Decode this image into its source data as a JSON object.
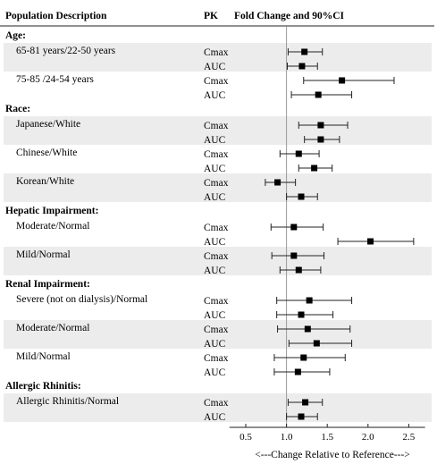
{
  "colors": {
    "band": "#ececec",
    "marker": "#000000",
    "refline": "#9a9a9a",
    "errorbar": "#222222"
  },
  "headers": {
    "population": "Population Description",
    "pk": "PK",
    "fold": "Fold Change and 90%CI"
  },
  "chart_data": {
    "type": "forest",
    "title": "",
    "xlabel": "<---Change Relative to Reference--->",
    "xlim": [
      0.3,
      2.7
    ],
    "xticks": [
      "0.5",
      "1.0",
      "1.5",
      "2.0",
      "2.5"
    ],
    "reference_line": 1.0,
    "groups": [
      {
        "title": "Age:",
        "subgroups": [
          {
            "label": "65-81 years/22-50  years",
            "rows": [
              {
                "pk": "Cmax",
                "est": 1.22,
                "lo": 1.02,
                "hi": 1.44
              },
              {
                "pk": "AUC",
                "est": 1.19,
                "lo": 1.01,
                "hi": 1.38
              }
            ]
          },
          {
            "label": "75-85 /24-54 years",
            "rows": [
              {
                "pk": "Cmax",
                "est": 1.68,
                "lo": 1.21,
                "hi": 2.32
              },
              {
                "pk": "AUC",
                "est": 1.39,
                "lo": 1.06,
                "hi": 1.8
              }
            ]
          }
        ]
      },
      {
        "title": "Race:",
        "subgroups": [
          {
            "label": "Japanese/White",
            "rows": [
              {
                "pk": "Cmax",
                "est": 1.42,
                "lo": 1.15,
                "hi": 1.75
              },
              {
                "pk": "AUC",
                "est": 1.42,
                "lo": 1.22,
                "hi": 1.65
              }
            ]
          },
          {
            "label": "Chinese/White",
            "rows": [
              {
                "pk": "Cmax",
                "est": 1.15,
                "lo": 0.92,
                "hi": 1.4
              },
              {
                "pk": "AUC",
                "est": 1.34,
                "lo": 1.15,
                "hi": 1.56
              }
            ]
          },
          {
            "label": "Korean/White",
            "rows": [
              {
                "pk": "Cmax",
                "est": 0.89,
                "lo": 0.74,
                "hi": 1.11
              },
              {
                "pk": "AUC",
                "est": 1.18,
                "lo": 1.0,
                "hi": 1.38
              }
            ]
          }
        ]
      },
      {
        "title": "Hepatic Impairment:",
        "subgroups": [
          {
            "label": "Moderate/Normal",
            "rows": [
              {
                "pk": "Cmax",
                "est": 1.09,
                "lo": 0.81,
                "hi": 1.45
              },
              {
                "pk": "AUC",
                "est": 2.03,
                "lo": 1.63,
                "hi": 2.56
              }
            ]
          },
          {
            "label": "Mild/Normal",
            "rows": [
              {
                "pk": "Cmax",
                "est": 1.09,
                "lo": 0.82,
                "hi": 1.46
              },
              {
                "pk": "AUC",
                "est": 1.15,
                "lo": 0.92,
                "hi": 1.42
              }
            ]
          }
        ]
      },
      {
        "title": "Renal Impairment:",
        "subgroups": [
          {
            "label": "Severe (not on dialysis)/Normal",
            "rows": [
              {
                "pk": "Cmax",
                "est": 1.28,
                "lo": 0.88,
                "hi": 1.8
              },
              {
                "pk": "AUC",
                "est": 1.18,
                "lo": 0.88,
                "hi": 1.57
              }
            ]
          },
          {
            "label": "Moderate/Normal",
            "rows": [
              {
                "pk": "Cmax",
                "est": 1.26,
                "lo": 0.89,
                "hi": 1.78
              },
              {
                "pk": "AUC",
                "est": 1.37,
                "lo": 1.03,
                "hi": 1.8
              }
            ]
          },
          {
            "label": "Mild/Normal",
            "rows": [
              {
                "pk": "Cmax",
                "est": 1.21,
                "lo": 0.85,
                "hi": 1.72
              },
              {
                "pk": "AUC",
                "est": 1.14,
                "lo": 0.85,
                "hi": 1.53
              }
            ]
          }
        ]
      },
      {
        "title": "Allergic Rhinitis:",
        "subgroups": [
          {
            "label": "Allergic Rhinitis/Normal",
            "rows": [
              {
                "pk": "Cmax",
                "est": 1.23,
                "lo": 1.02,
                "hi": 1.44
              },
              {
                "pk": "AUC",
                "est": 1.18,
                "lo": 1.0,
                "hi": 1.38
              }
            ]
          }
        ]
      }
    ]
  }
}
